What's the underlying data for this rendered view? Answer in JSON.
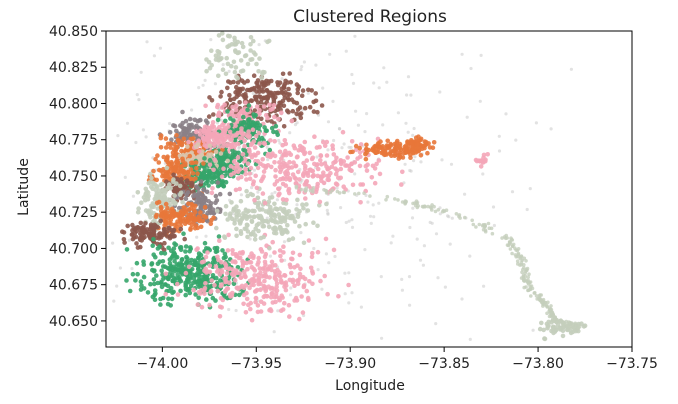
{
  "chart_data": {
    "type": "scatter",
    "title": "Clustered Regions",
    "xlabel": "Longitude",
    "ylabel": "Latitude",
    "xlim": [
      -74.03,
      -73.75
    ],
    "ylim": [
      40.632,
      40.85
    ],
    "xticks": [
      -74.0,
      -73.95,
      -73.9,
      -73.85,
      -73.8,
      -73.75
    ],
    "xtick_labels": [
      "−74.00",
      "−73.95",
      "−73.90",
      "−73.85",
      "−73.80",
      "−73.75"
    ],
    "yticks": [
      40.65,
      40.675,
      40.7,
      40.725,
      40.75,
      40.775,
      40.8,
      40.825,
      40.85
    ],
    "ytick_labels": [
      "40.650",
      "40.675",
      "40.700",
      "40.725",
      "40.750",
      "40.775",
      "40.800",
      "40.825",
      "40.850"
    ],
    "grid": false,
    "legend": "none",
    "colors": {
      "brown": "#8c564b",
      "pink": "#f4a6b8",
      "green": "#35a56a",
      "orange": "#e8773a",
      "gray": "#8a7f86",
      "sage": "#c4cebc",
      "lightgray": "#cbcbcb",
      "beige": "#d9c6b0"
    },
    "clusters": [
      {
        "color": "brown",
        "center": [
          -73.945,
          40.803
        ],
        "spread": [
          0.012,
          0.009
        ],
        "n": 220
      },
      {
        "color": "pink",
        "center": [
          -73.957,
          40.789
        ],
        "spread": [
          0.01,
          0.006
        ],
        "n": 110
      },
      {
        "color": "green",
        "center": [
          -73.955,
          40.781
        ],
        "spread": [
          0.008,
          0.006
        ],
        "n": 120
      },
      {
        "color": "pink",
        "center": [
          -73.962,
          40.772
        ],
        "spread": [
          0.008,
          0.006
        ],
        "n": 110
      },
      {
        "color": "green",
        "center": [
          -73.967,
          40.76
        ],
        "spread": [
          0.006,
          0.006
        ],
        "n": 110
      },
      {
        "color": "gray",
        "center": [
          -73.985,
          40.78
        ],
        "spread": [
          0.006,
          0.005
        ],
        "n": 90
      },
      {
        "color": "orange",
        "center": [
          -73.987,
          40.768
        ],
        "spread": [
          0.007,
          0.005
        ],
        "n": 110
      },
      {
        "color": "pink",
        "center": [
          -73.973,
          40.777
        ],
        "spread": [
          0.006,
          0.004
        ],
        "n": 80
      },
      {
        "color": "beige",
        "center": [
          -73.981,
          40.76
        ],
        "spread": [
          0.006,
          0.005
        ],
        "n": 90
      },
      {
        "color": "green",
        "center": [
          -73.977,
          40.751
        ],
        "spread": [
          0.006,
          0.005
        ],
        "n": 110
      },
      {
        "color": "orange",
        "center": [
          -73.993,
          40.753
        ],
        "spread": [
          0.006,
          0.005
        ],
        "n": 110
      },
      {
        "color": "brown",
        "center": [
          -73.991,
          40.742
        ],
        "spread": [
          0.004,
          0.004
        ],
        "n": 70
      },
      {
        "color": "gray",
        "center": [
          -73.98,
          40.73
        ],
        "spread": [
          0.006,
          0.006
        ],
        "n": 110
      },
      {
        "color": "sage",
        "center": [
          -74.001,
          40.733
        ],
        "spread": [
          0.006,
          0.01
        ],
        "n": 130
      },
      {
        "color": "orange",
        "center": [
          -73.99,
          40.722
        ],
        "spread": [
          0.007,
          0.005
        ],
        "n": 120
      },
      {
        "color": "brown",
        "center": [
          -74.005,
          40.71
        ],
        "spread": [
          0.007,
          0.004
        ],
        "n": 110
      },
      {
        "color": "green",
        "center": [
          -73.985,
          40.683
        ],
        "spread": [
          0.013,
          0.01
        ],
        "n": 340
      },
      {
        "color": "pink",
        "center": [
          -73.95,
          40.68
        ],
        "spread": [
          0.018,
          0.012
        ],
        "n": 300
      },
      {
        "color": "sage",
        "center": [
          -73.945,
          40.721
        ],
        "spread": [
          0.012,
          0.008
        ],
        "n": 180
      },
      {
        "color": "pink",
        "center": [
          -73.925,
          40.755
        ],
        "spread": [
          0.022,
          0.01
        ],
        "n": 280
      },
      {
        "color": "orange",
        "center": [
          -73.875,
          40.768
        ],
        "spread": [
          0.01,
          0.003
        ],
        "n": 110
      },
      {
        "color": "orange",
        "center": [
          -73.865,
          40.773
        ],
        "spread": [
          0.004,
          0.002
        ],
        "n": 40
      },
      {
        "color": "pink",
        "center": [
          -73.83,
          40.761
        ],
        "spread": [
          0.002,
          0.002
        ],
        "n": 15
      },
      {
        "color": "sage",
        "center": [
          -73.96,
          40.835
        ],
        "spread": [
          0.008,
          0.008
        ],
        "n": 70
      },
      {
        "color": "sage",
        "center": [
          -73.787,
          40.645
        ],
        "spread": [
          0.006,
          0.003
        ],
        "n": 50
      },
      {
        "color": "lightgray",
        "center": [
          -73.93,
          40.745
        ],
        "spread": [
          0.06,
          0.05
        ],
        "n": 350
      }
    ],
    "paths": [
      {
        "color": "sage",
        "points": [
          [
            -73.93,
            40.742
          ],
          [
            -73.88,
            40.735
          ],
          [
            -73.845,
            40.725
          ],
          [
            -73.815,
            40.705
          ],
          [
            -73.808,
            40.69
          ],
          [
            -73.805,
            40.672
          ],
          [
            -73.795,
            40.66
          ],
          [
            -73.79,
            40.65
          ],
          [
            -73.778,
            40.645
          ]
        ],
        "n": 260,
        "jitter": 0.0012
      }
    ]
  }
}
